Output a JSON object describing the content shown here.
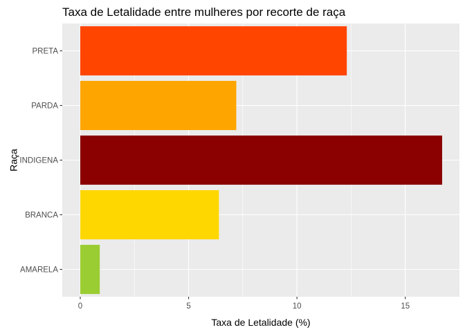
{
  "chart_data": {
    "type": "bar",
    "orientation": "horizontal",
    "title": "Taxa de Letalidade entre mulheres por recorte de raça",
    "xlabel": "Taxa de Letalidade (%)",
    "ylabel": "Raça",
    "categories": [
      "AMARELA",
      "BRANCA",
      "INDIGENA",
      "PARDA",
      "PRETA"
    ],
    "values": [
      0.9,
      6.4,
      16.7,
      7.2,
      12.3
    ],
    "colors": [
      "#9ACD32",
      "#FFD700",
      "#8B0000",
      "#FFA500",
      "#FF4500"
    ],
    "xlim": [
      -0.83,
      17.5
    ],
    "xticks": [
      0,
      5,
      10,
      15
    ],
    "xtick_labels": [
      "0",
      "5",
      "10",
      "15"
    ],
    "grid": true,
    "panel_background": "#EBEBEB",
    "grid_color": "#FFFFFF",
    "legend": "none"
  }
}
